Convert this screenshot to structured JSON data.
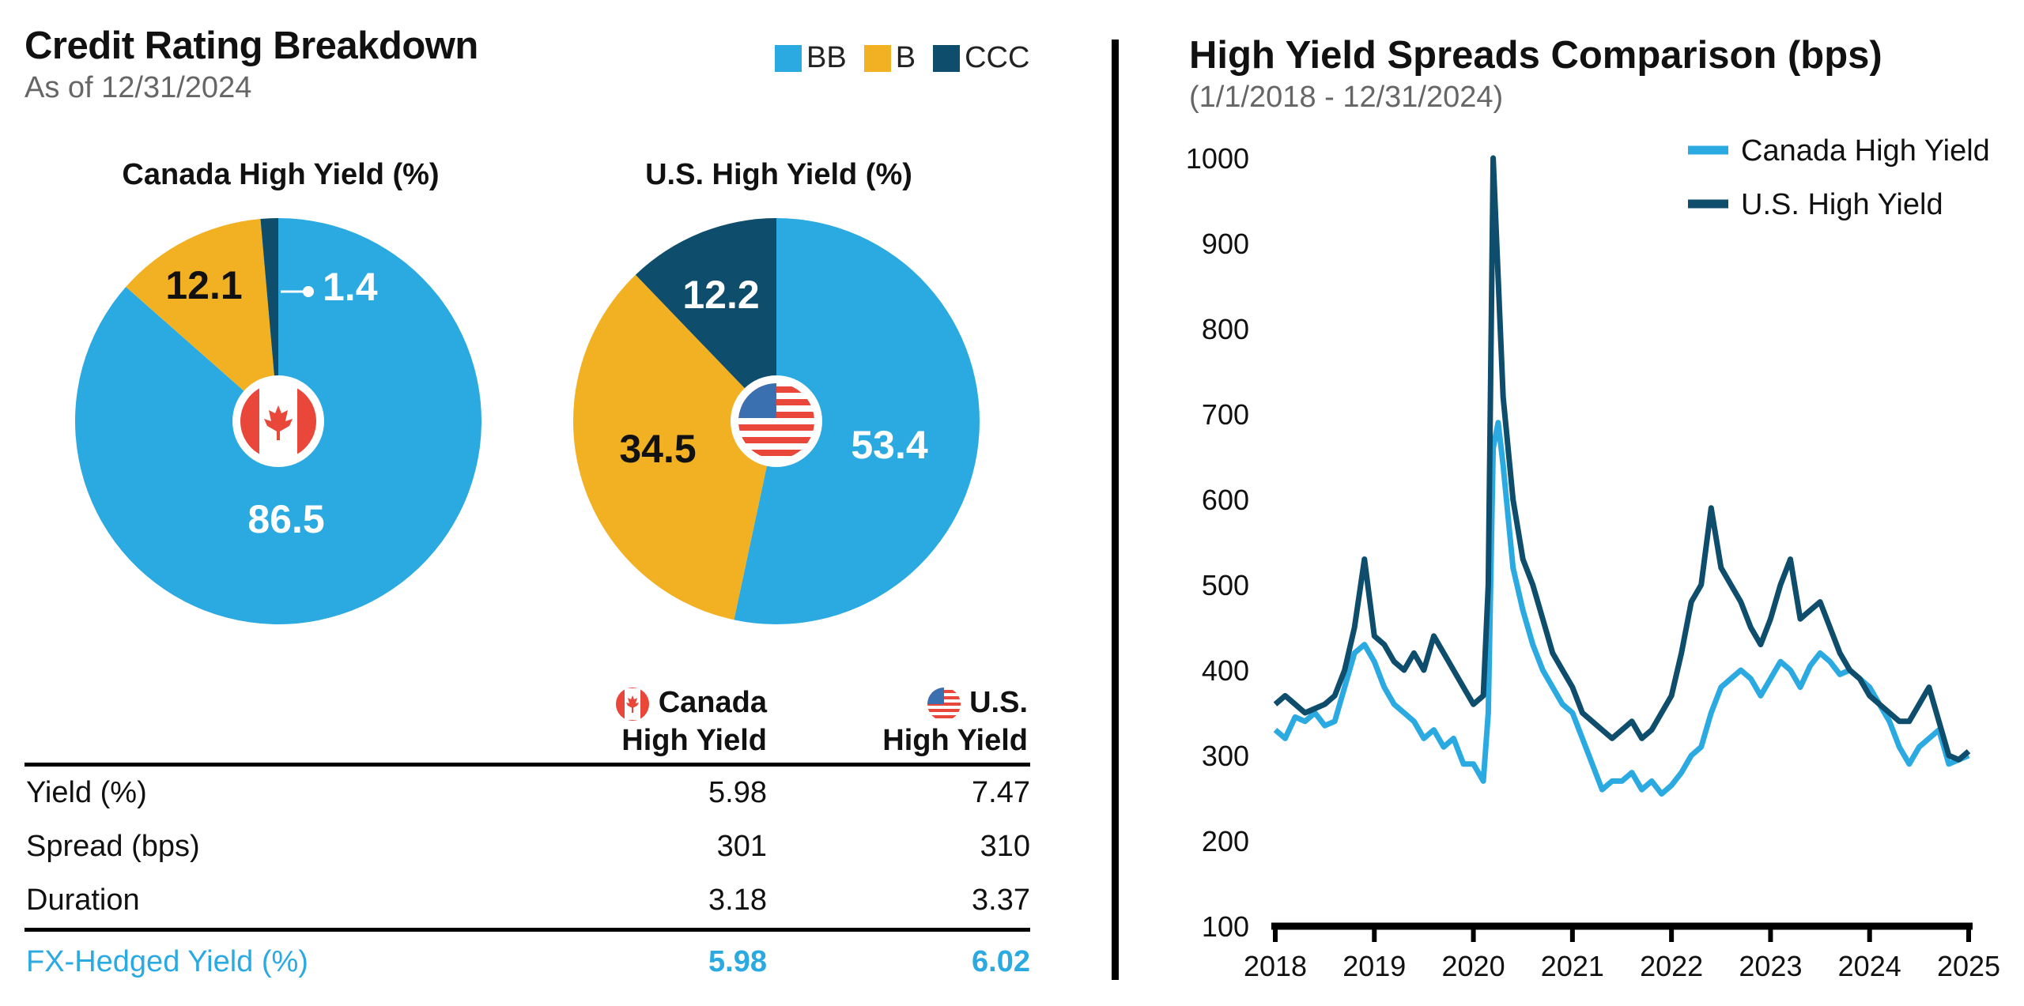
{
  "left": {
    "title": "Credit Rating Breakdown",
    "subtitle": "As of 12/31/2024",
    "legend": [
      {
        "label": "BB",
        "color": "#2baae2"
      },
      {
        "label": "B",
        "color": "#f2b122"
      },
      {
        "label": "CCC",
        "color": "#0e4d6b"
      }
    ]
  },
  "table": {
    "col1_line1": "Canada",
    "col1_line2": "High Yield",
    "col2_line1": "U.S.",
    "col2_line2": "High Yield",
    "rows": [
      {
        "label": "Yield (%)",
        "canada": "5.98",
        "us": "7.47"
      },
      {
        "label": "Spread (bps)",
        "canada": "301",
        "us": "310"
      },
      {
        "label": "Duration",
        "canada": "3.18",
        "us": "3.37"
      }
    ],
    "fx_row": {
      "label": "FX-Hedged Yield (%)",
      "canada": "5.98",
      "us": "6.02"
    }
  },
  "chart_data": [
    {
      "type": "pie",
      "title": "Canada High Yield (%)",
      "icon": "canada-flag-icon",
      "slices": [
        {
          "label": "BB",
          "value": 86.5,
          "display": "86.5",
          "color": "#2baae2"
        },
        {
          "label": "B",
          "value": 12.1,
          "display": "12.1",
          "color": "#f2b122"
        },
        {
          "label": "CCC",
          "value": 1.4,
          "display": "1.4",
          "color": "#0e4d6b"
        }
      ]
    },
    {
      "type": "pie",
      "title": "U.S. High Yield (%)",
      "icon": "us-flag-icon",
      "slices": [
        {
          "label": "BB",
          "value": 53.4,
          "display": "53.4",
          "color": "#2baae2"
        },
        {
          "label": "B",
          "value": 34.5,
          "display": "34.5",
          "color": "#f2b122"
        },
        {
          "label": "CCC",
          "value": 12.2,
          "display": "12.2",
          "color": "#0e4d6b"
        }
      ]
    },
    {
      "type": "line",
      "title": "High Yield Spreads Comparison (bps)",
      "subtitle": "(1/1/2018 - 12/31/2024)",
      "ylim": [
        100,
        1000
      ],
      "yticks": [
        100,
        200,
        300,
        400,
        500,
        600,
        700,
        800,
        900,
        1000
      ],
      "xlim": [
        2018,
        2025
      ],
      "xticks": [
        "2018",
        "2019",
        "2020",
        "2021",
        "2022",
        "2023",
        "2024",
        "2025"
      ],
      "legend": "top-right",
      "series": [
        {
          "name": "Canada High Yield",
          "color": "#2baae2",
          "x": [
            2018.0,
            2018.1,
            2018.2,
            2018.3,
            2018.4,
            2018.5,
            2018.6,
            2018.7,
            2018.8,
            2018.9,
            2019.0,
            2019.1,
            2019.2,
            2019.3,
            2019.4,
            2019.5,
            2019.6,
            2019.7,
            2019.8,
            2019.9,
            2020.0,
            2020.1,
            2020.15,
            2020.2,
            2020.25,
            2020.3,
            2020.4,
            2020.5,
            2020.6,
            2020.7,
            2020.8,
            2020.9,
            2021.0,
            2021.1,
            2021.2,
            2021.3,
            2021.4,
            2021.5,
            2021.6,
            2021.7,
            2021.8,
            2021.9,
            2022.0,
            2022.1,
            2022.2,
            2022.3,
            2022.4,
            2022.5,
            2022.6,
            2022.7,
            2022.8,
            2022.9,
            2023.0,
            2023.1,
            2023.2,
            2023.3,
            2023.4,
            2023.5,
            2023.6,
            2023.7,
            2023.8,
            2023.9,
            2024.0,
            2024.1,
            2024.2,
            2024.3,
            2024.4,
            2024.5,
            2024.6,
            2024.7,
            2024.8,
            2024.9,
            2025.0
          ],
          "values": [
            330,
            320,
            345,
            340,
            350,
            335,
            340,
            380,
            420,
            430,
            410,
            380,
            360,
            350,
            340,
            320,
            330,
            310,
            320,
            290,
            290,
            270,
            350,
            660,
            690,
            640,
            520,
            470,
            430,
            400,
            380,
            360,
            350,
            320,
            290,
            260,
            270,
            270,
            280,
            260,
            270,
            255,
            265,
            280,
            300,
            310,
            350,
            380,
            390,
            400,
            390,
            370,
            390,
            410,
            400,
            380,
            405,
            420,
            410,
            395,
            400,
            390,
            380,
            360,
            340,
            310,
            290,
            310,
            320,
            330,
            290,
            295,
            300
          ]
        },
        {
          "name": "U.S. High Yield",
          "color": "#0e4d6b",
          "x": [
            2018.0,
            2018.1,
            2018.2,
            2018.3,
            2018.4,
            2018.5,
            2018.6,
            2018.7,
            2018.8,
            2018.9,
            2019.0,
            2019.1,
            2019.2,
            2019.3,
            2019.4,
            2019.5,
            2019.6,
            2019.7,
            2019.8,
            2019.9,
            2020.0,
            2020.1,
            2020.15,
            2020.2,
            2020.25,
            2020.3,
            2020.4,
            2020.5,
            2020.6,
            2020.7,
            2020.8,
            2020.9,
            2021.0,
            2021.1,
            2021.2,
            2021.3,
            2021.4,
            2021.5,
            2021.6,
            2021.7,
            2021.8,
            2021.9,
            2022.0,
            2022.1,
            2022.2,
            2022.3,
            2022.4,
            2022.5,
            2022.6,
            2022.7,
            2022.8,
            2022.9,
            2023.0,
            2023.1,
            2023.2,
            2023.3,
            2023.4,
            2023.5,
            2023.6,
            2023.7,
            2023.8,
            2023.9,
            2024.0,
            2024.1,
            2024.2,
            2024.3,
            2024.4,
            2024.5,
            2024.6,
            2024.7,
            2024.8,
            2024.9,
            2025.0
          ],
          "values": [
            360,
            370,
            360,
            350,
            355,
            360,
            370,
            400,
            450,
            530,
            440,
            430,
            410,
            400,
            420,
            400,
            440,
            420,
            400,
            380,
            360,
            370,
            500,
            1000,
            860,
            720,
            600,
            530,
            500,
            460,
            420,
            400,
            380,
            350,
            340,
            330,
            320,
            330,
            340,
            320,
            330,
            350,
            370,
            420,
            480,
            500,
            590,
            520,
            500,
            480,
            450,
            430,
            460,
            500,
            530,
            460,
            470,
            480,
            450,
            420,
            400,
            390,
            370,
            360,
            350,
            340,
            340,
            360,
            380,
            340,
            300,
            295,
            305
          ]
        }
      ]
    }
  ]
}
